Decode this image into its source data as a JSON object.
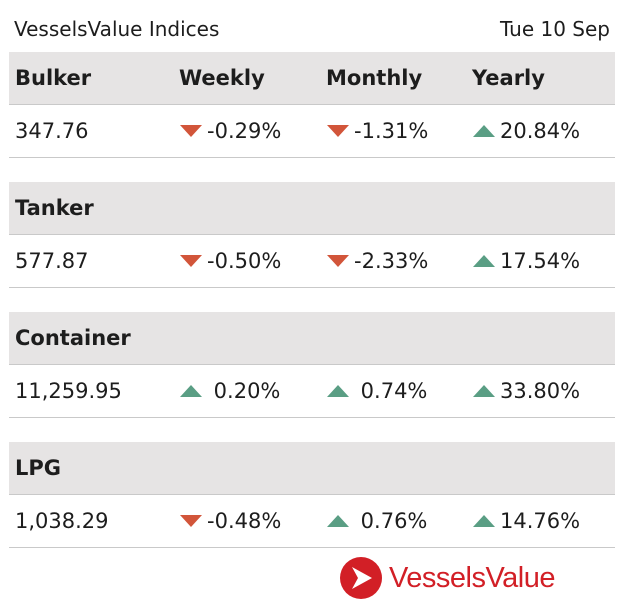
{
  "header": {
    "title": "VesselsValue Indices",
    "date": "Tue 10 Sep"
  },
  "columns": {
    "weekly": "Weekly",
    "monthly": "Monthly",
    "yearly": "Yearly"
  },
  "colors": {
    "up": "#5a9e84",
    "down": "#d2553a",
    "header_bg": "#e6e4e4",
    "brand": "#d21f26"
  },
  "indices": [
    {
      "name": "Bulker",
      "value": "347.76",
      "weekly": {
        "text": "-0.29%",
        "dir": "down"
      },
      "monthly": {
        "text": "-1.31%",
        "dir": "down"
      },
      "yearly": {
        "text": "20.84%",
        "dir": "up"
      }
    },
    {
      "name": "Tanker",
      "value": "577.87",
      "weekly": {
        "text": "-0.50%",
        "dir": "down"
      },
      "monthly": {
        "text": "-2.33%",
        "dir": "down"
      },
      "yearly": {
        "text": "17.54%",
        "dir": "up"
      }
    },
    {
      "name": "Container",
      "value": "11,259.95",
      "weekly": {
        "text": " 0.20%",
        "dir": "up"
      },
      "monthly": {
        "text": " 0.74%",
        "dir": "up"
      },
      "yearly": {
        "text": "33.80%",
        "dir": "up"
      }
    },
    {
      "name": "LPG",
      "value": "1,038.29",
      "weekly": {
        "text": "-0.48%",
        "dir": "down"
      },
      "monthly": {
        "text": " 0.76%",
        "dir": "up"
      },
      "yearly": {
        "text": "14.76%",
        "dir": "up"
      }
    }
  ],
  "logo": {
    "text": "VesselsValue",
    "icon": "vesselsvalue-logo-icon"
  }
}
